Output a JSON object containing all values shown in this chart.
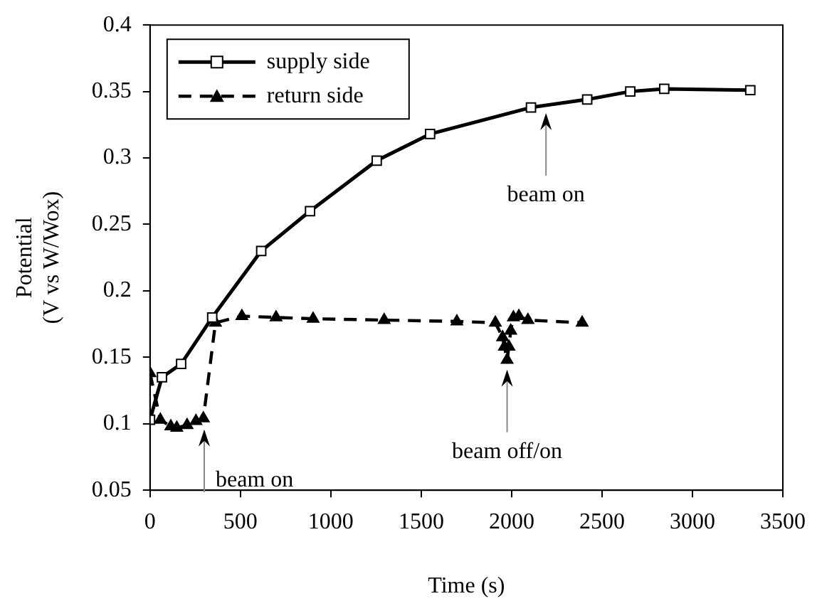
{
  "chart_data": {
    "type": "line",
    "xlabel": "Time (s)",
    "ylabel": "Potential\n(V vs W/Wox)",
    "xlim": [
      0,
      3500
    ],
    "xticks": [
      0,
      500,
      1000,
      1500,
      2000,
      2500,
      3000,
      3500
    ],
    "ylim": [
      0.05,
      0.4
    ],
    "yticks": [
      0.05,
      0.1,
      0.15,
      0.2,
      0.25,
      0.3,
      0.35,
      0.4
    ],
    "grid": false,
    "legend": "top left",
    "series": [
      {
        "name": "supply side",
        "color": "#000000",
        "marker": "square",
        "line_style": "solid",
        "x": [
          0,
          66,
          172,
          344,
          615,
          885,
          1254,
          1549,
          2107,
          2418,
          2656,
          2844,
          3320
        ],
        "values": [
          0.103,
          0.135,
          0.145,
          0.18,
          0.23,
          0.26,
          0.298,
          0.318,
          0.338,
          0.344,
          0.35,
          0.352,
          0.351
        ]
      },
      {
        "name": "return side",
        "color": "#000000",
        "marker": "triangle",
        "line_style": "dashed",
        "x": [
          0,
          57,
          115,
          148,
          205,
          254,
          295,
          362,
          508,
          697,
          902,
          1295,
          1697,
          1910,
          1950,
          1960,
          1975,
          1985,
          1995,
          2010,
          2040,
          2090,
          2390
        ],
        "values": [
          0.138,
          0.103,
          0.098,
          0.097,
          0.099,
          0.102,
          0.104,
          0.176,
          0.181,
          0.18,
          0.179,
          0.178,
          0.177,
          0.176,
          0.165,
          0.158,
          0.148,
          0.158,
          0.17,
          0.18,
          0.181,
          0.178,
          0.176
        ]
      }
    ],
    "annotations": [
      {
        "text": "beam on",
        "x": 300,
        "y": 0.1
      },
      {
        "text": "beam on",
        "x": 2190,
        "y": 0.338
      },
      {
        "text": "beam off/on",
        "x": 1975,
        "y": 0.145
      }
    ]
  }
}
